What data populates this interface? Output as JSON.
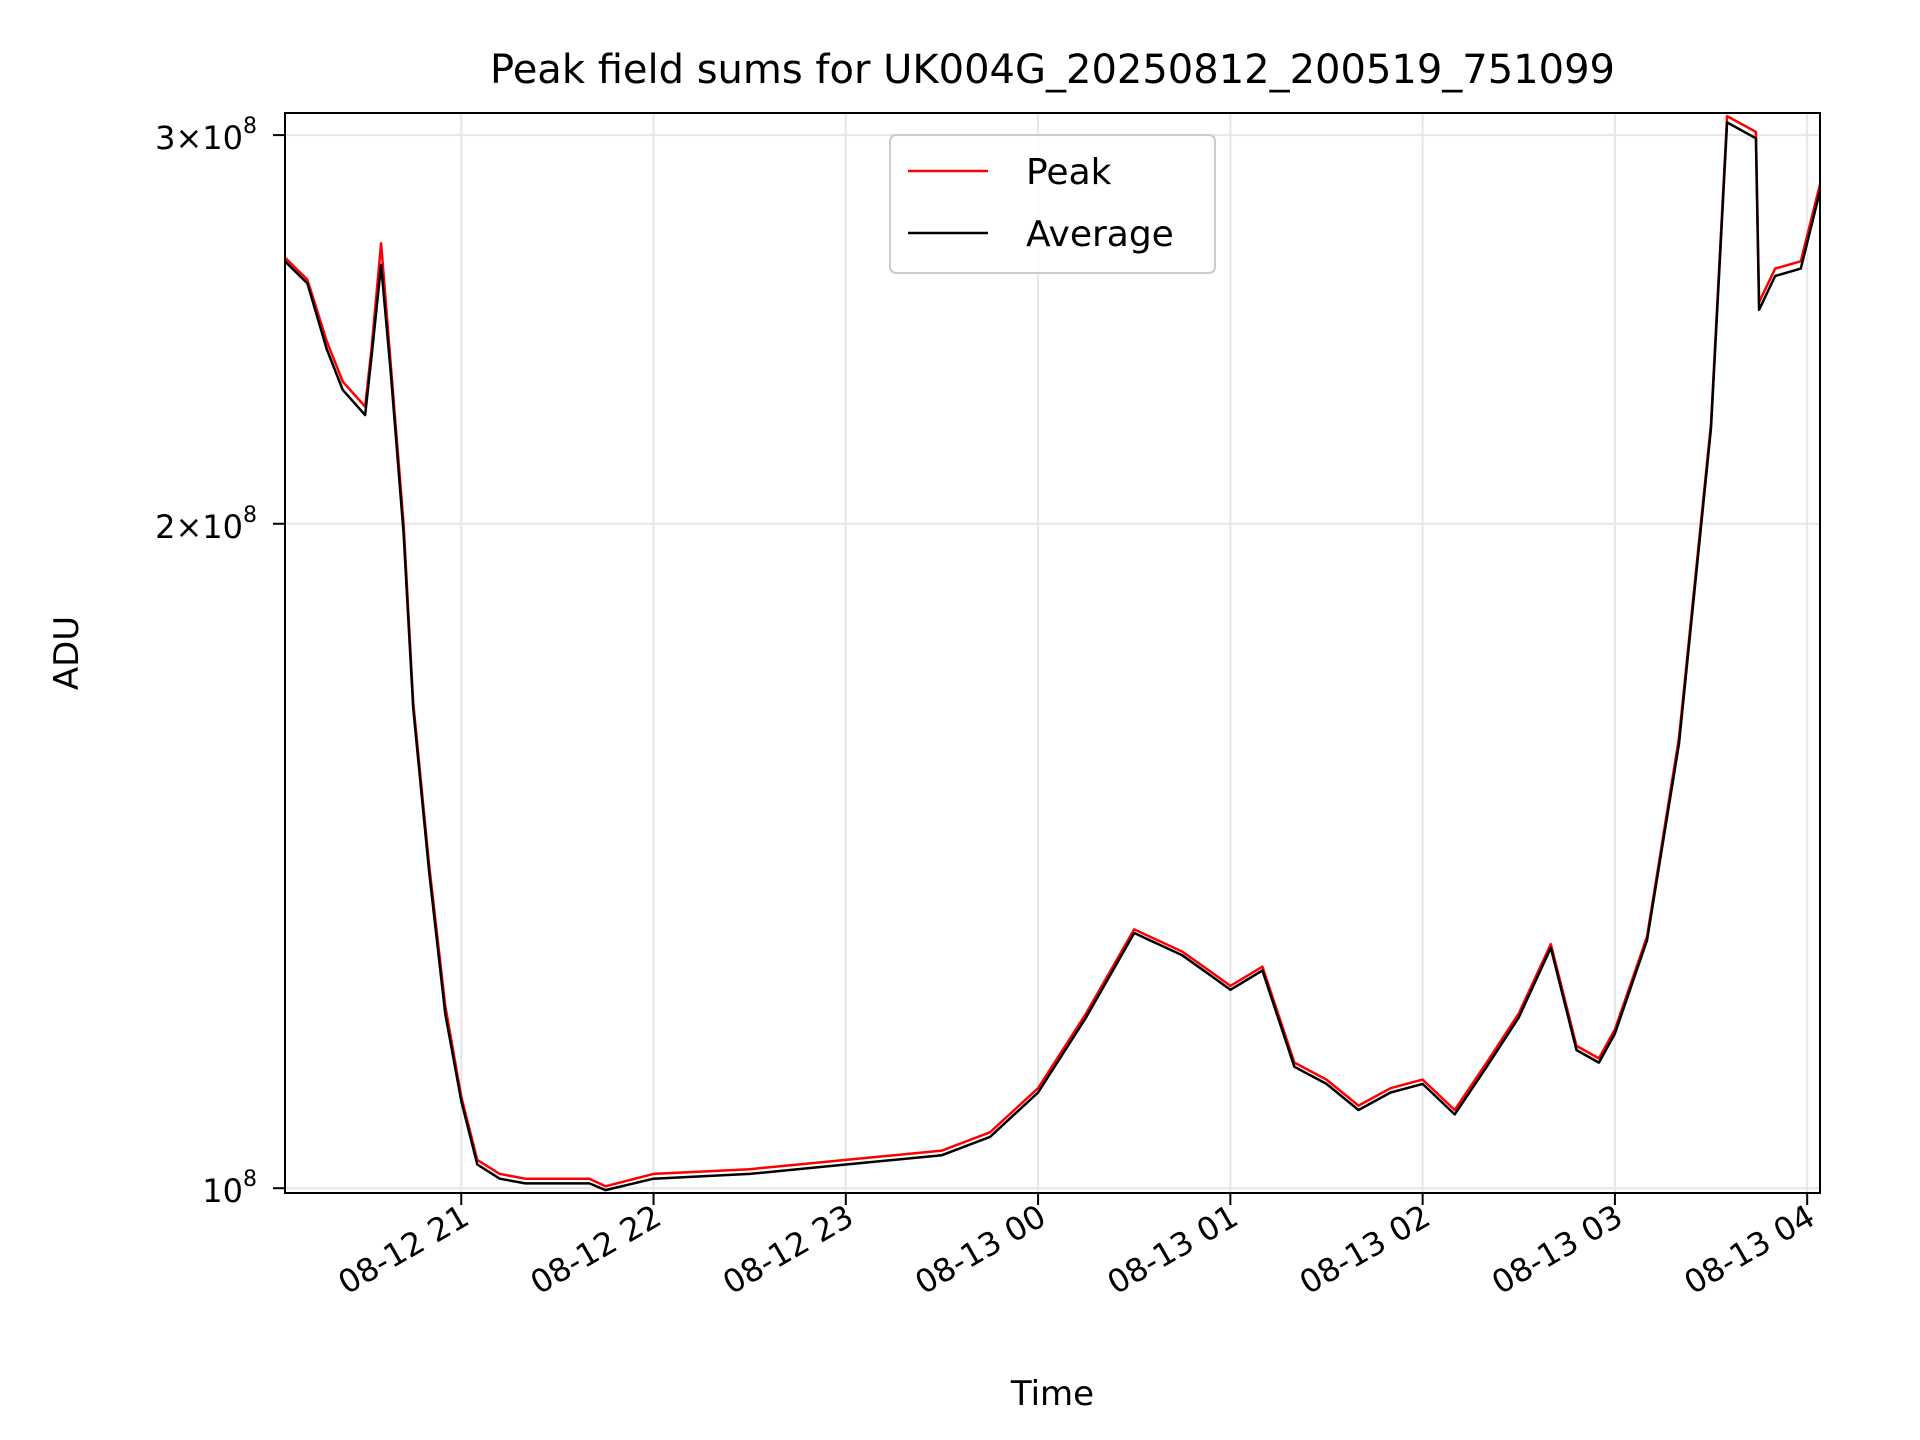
{
  "chart_data": {
    "type": "line",
    "title": "Peak field sums for UK004G_20250812_200519_751099",
    "xlabel": "Time",
    "ylabel": "ADU",
    "y_scale": "log",
    "ylim": [
      99500000,
      307000000
    ],
    "xlim": [
      "2025-08-12 20:05",
      "2025-08-13 04:04"
    ],
    "grid": true,
    "legend_position": "top-center",
    "x_ticks": [
      {
        "t": "2025-08-12 21:00",
        "label": "08-12 21"
      },
      {
        "t": "2025-08-12 22:00",
        "label": "08-12 22"
      },
      {
        "t": "2025-08-12 23:00",
        "label": "08-12 23"
      },
      {
        "t": "2025-08-13 00:00",
        "label": "08-13 00"
      },
      {
        "t": "2025-08-13 01:00",
        "label": "08-13 01"
      },
      {
        "t": "2025-08-13 02:00",
        "label": "08-13 02"
      },
      {
        "t": "2025-08-13 03:00",
        "label": "08-13 03"
      },
      {
        "t": "2025-08-13 04:00",
        "label": "08-13 04"
      }
    ],
    "y_ticks": [
      {
        "v": 100000000,
        "mantissa": "",
        "base": "10",
        "exp": "8"
      },
      {
        "v": 200000000,
        "mantissa": "2",
        "base": "10",
        "exp": "8"
      },
      {
        "v": 300000000,
        "mantissa": "3",
        "base": "10",
        "exp": "8"
      }
    ],
    "series": [
      {
        "name": "Peak",
        "color": "#ff0000",
        "x": [
          "2025-08-12 20:05",
          "2025-08-12 20:12",
          "2025-08-12 20:18",
          "2025-08-12 20:23",
          "2025-08-12 20:30",
          "2025-08-12 20:32",
          "2025-08-12 20:35",
          "2025-08-12 20:38",
          "2025-08-12 20:42",
          "2025-08-12 20:45",
          "2025-08-12 20:50",
          "2025-08-12 20:55",
          "2025-08-12 21:00",
          "2025-08-12 21:05",
          "2025-08-12 21:12",
          "2025-08-12 21:20",
          "2025-08-12 21:30",
          "2025-08-12 21:40",
          "2025-08-12 21:45",
          "2025-08-12 22:00",
          "2025-08-12 22:30",
          "2025-08-12 23:00",
          "2025-08-12 23:30",
          "2025-08-12 23:45",
          "2025-08-13 00:00",
          "2025-08-13 00:15",
          "2025-08-13 00:30",
          "2025-08-13 00:45",
          "2025-08-13 00:55",
          "2025-08-13 01:00",
          "2025-08-13 01:10",
          "2025-08-13 01:20",
          "2025-08-13 01:30",
          "2025-08-13 01:40",
          "2025-08-13 01:50",
          "2025-08-13 02:00",
          "2025-08-13 02:10",
          "2025-08-13 02:20",
          "2025-08-13 02:30",
          "2025-08-13 02:40",
          "2025-08-13 02:48",
          "2025-08-13 02:55",
          "2025-08-13 03:00",
          "2025-08-13 03:10",
          "2025-08-13 03:20",
          "2025-08-13 03:30",
          "2025-08-13 03:35",
          "2025-08-13 03:44",
          "2025-08-13 03:45",
          "2025-08-13 03:50",
          "2025-08-13 03:58",
          "2025-08-13 04:04"
        ],
        "y": [
          264000000,
          258000000,
          242000000,
          232000000,
          226000000,
          240000000,
          268000000,
          236000000,
          200000000,
          166000000,
          140000000,
          121000000,
          110000000,
          103000000,
          101500000,
          101000000,
          101000000,
          101000000,
          100200000,
          101500000,
          102000000,
          103000000,
          104000000,
          106000000,
          111000000,
          120000000,
          131000000,
          128000000,
          125000000,
          123500000,
          126000000,
          114000000,
          112000000,
          109000000,
          111000000,
          112000000,
          108500000,
          114000000,
          120000000,
          129000000,
          116000000,
          114500000,
          118000000,
          130000000,
          160000000,
          222000000,
          306000000,
          301000000,
          252000000,
          261000000,
          263000000,
          285000000
        ]
      },
      {
        "name": "Average",
        "color": "#000000",
        "x": [
          "2025-08-12 20:05",
          "2025-08-12 20:12",
          "2025-08-12 20:18",
          "2025-08-12 20:23",
          "2025-08-12 20:30",
          "2025-08-12 20:32",
          "2025-08-12 20:35",
          "2025-08-12 20:38",
          "2025-08-12 20:42",
          "2025-08-12 20:45",
          "2025-08-12 20:50",
          "2025-08-12 20:55",
          "2025-08-12 21:00",
          "2025-08-12 21:05",
          "2025-08-12 21:12",
          "2025-08-12 21:20",
          "2025-08-12 21:30",
          "2025-08-12 21:40",
          "2025-08-12 21:45",
          "2025-08-12 22:00",
          "2025-08-12 22:30",
          "2025-08-12 23:00",
          "2025-08-12 23:30",
          "2025-08-12 23:45",
          "2025-08-13 00:00",
          "2025-08-13 00:15",
          "2025-08-13 00:30",
          "2025-08-13 00:45",
          "2025-08-13 00:55",
          "2025-08-13 01:00",
          "2025-08-13 01:10",
          "2025-08-13 01:20",
          "2025-08-13 01:30",
          "2025-08-13 01:40",
          "2025-08-13 01:50",
          "2025-08-13 02:00",
          "2025-08-13 02:10",
          "2025-08-13 02:20",
          "2025-08-13 02:30",
          "2025-08-13 02:40",
          "2025-08-13 02:48",
          "2025-08-13 02:55",
          "2025-08-13 03:00",
          "2025-08-13 03:10",
          "2025-08-13 03:20",
          "2025-08-13 03:30",
          "2025-08-13 03:35",
          "2025-08-13 03:44",
          "2025-08-13 03:45",
          "2025-08-13 03:50",
          "2025-08-13 03:58",
          "2025-08-13 04:04"
        ],
        "y": [
          263000000,
          257000000,
          240000000,
          230000000,
          224000000,
          238000000,
          262000000,
          234000000,
          198000000,
          165000000,
          139000000,
          120000000,
          109500000,
          102500000,
          101000000,
          100500000,
          100500000,
          100500000,
          99800000,
          101000000,
          101500000,
          102500000,
          103500000,
          105500000,
          110500000,
          119500000,
          130500000,
          127500000,
          124500000,
          123000000,
          125500000,
          113500000,
          111500000,
          108500000,
          110500000,
          111500000,
          108000000,
          113500000,
          119500000,
          128500000,
          115500000,
          114000000,
          117500000,
          129500000,
          159000000,
          221000000,
          304000000,
          299000000,
          250000000,
          259000000,
          261000000,
          283000000
        ]
      }
    ]
  }
}
